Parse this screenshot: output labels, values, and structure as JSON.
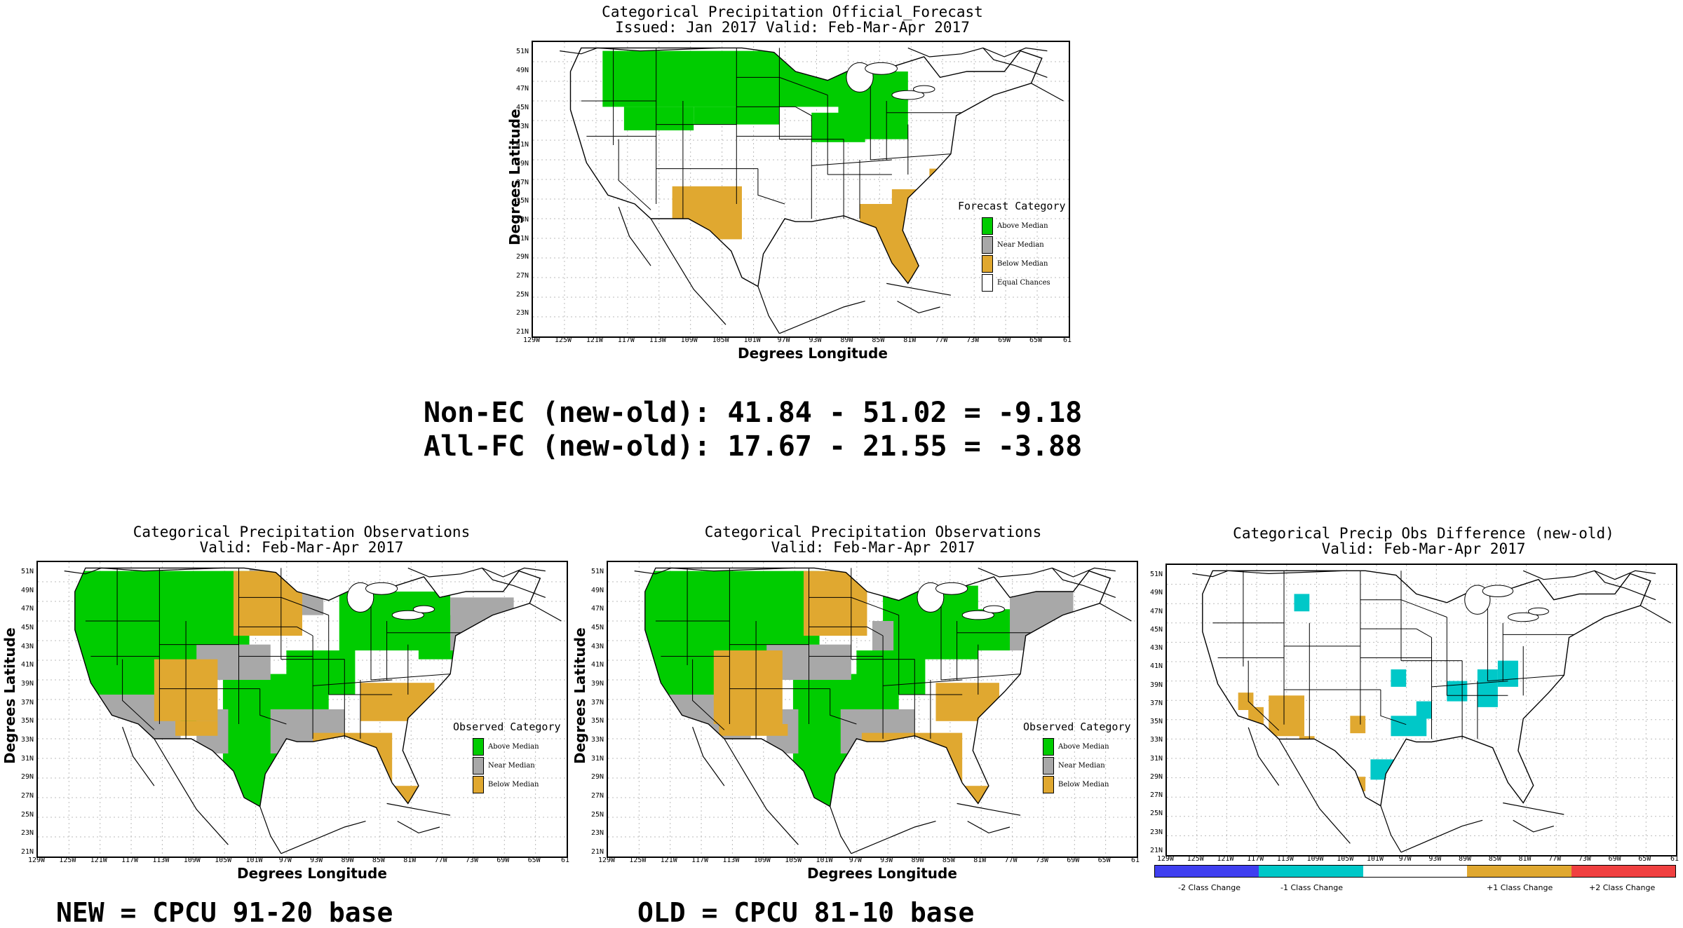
{
  "colors": {
    "above": "#00cc00",
    "near": "#a8a8a8",
    "below": "#e0a830",
    "equal": "#ffffff",
    "minus2": "#3f3ff0",
    "minus1": "#00c8c8",
    "zero": "#ffffff",
    "plus1": "#e0a830",
    "plus2": "#f04040"
  },
  "axes": {
    "ylabel": "Degrees Latitude",
    "xlabel": "Degrees Longitude",
    "lat_ticks": [
      "51N",
      "49N",
      "47N",
      "45N",
      "43N",
      "41N",
      "39N",
      "37N",
      "35N",
      "33N",
      "31N",
      "29N",
      "27N",
      "25N",
      "23N",
      "21N"
    ],
    "lon_ticks": [
      "129W",
      "125W",
      "121W",
      "117W",
      "113W",
      "109W",
      "105W",
      "101W",
      "97W",
      "93W",
      "89W",
      "85W",
      "81W",
      "77W",
      "73W",
      "69W",
      "65W",
      "61"
    ]
  },
  "forecast": {
    "title1": "Categorical Precipitation Official_Forecast",
    "title2": "Issued: Jan 2017 Valid: Feb-Mar-Apr 2017",
    "legend_title": "Forecast Category",
    "legend": [
      "Above Median",
      "Near Median",
      "Below Median",
      "Equal Chances"
    ]
  },
  "stats": {
    "line1": "Non-EC (new-old): 41.84 - 51.02 = -9.18",
    "line2": "All-FC (new-old): 17.67 - 21.55 = -3.88"
  },
  "obs_new": {
    "title1": "Categorical Precipitation Observations",
    "title2": "Valid: Feb-Mar-Apr 2017",
    "legend_title": "Observed Category",
    "legend": [
      "Above Median",
      "Near Median",
      "Below Median"
    ],
    "caption": "NEW = CPCU 91-20 base"
  },
  "obs_old": {
    "title1": "Categorical Precipitation Observations",
    "title2": "Valid: Feb-Mar-Apr 2017",
    "legend_title": "Observed Category",
    "legend": [
      "Above Median",
      "Near Median",
      "Below Median"
    ],
    "caption": "OLD = CPCU 81-10 base"
  },
  "diff": {
    "title1": "Categorical Precip Obs Difference (new-old)",
    "title2": "Valid: Feb-Mar-Apr 2017",
    "colorbar": [
      "-2 Class Change",
      "-1 Class Change",
      "+1 Class Change",
      "+2 Class Change"
    ]
  }
}
